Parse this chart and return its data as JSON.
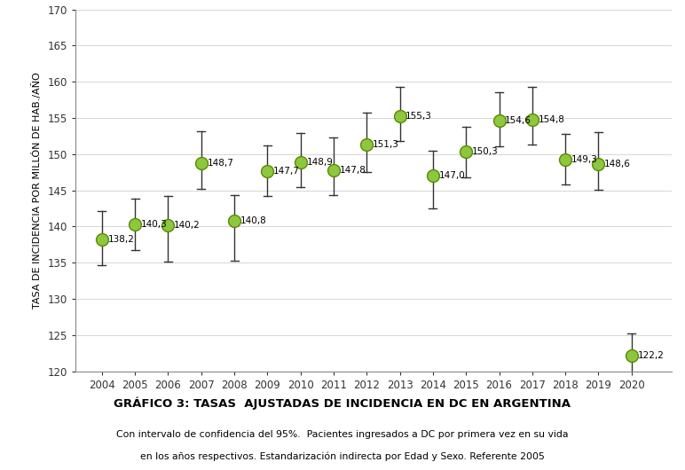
{
  "years": [
    2004,
    2005,
    2006,
    2007,
    2008,
    2009,
    2010,
    2011,
    2012,
    2013,
    2014,
    2015,
    2016,
    2017,
    2018,
    2019,
    2020
  ],
  "values": [
    138.2,
    140.3,
    140.2,
    148.7,
    140.8,
    147.7,
    148.9,
    147.8,
    151.3,
    155.3,
    147.0,
    150.3,
    154.6,
    154.8,
    149.3,
    148.6,
    122.2
  ],
  "err_low": [
    3.5,
    3.5,
    5.0,
    3.5,
    5.5,
    3.5,
    3.5,
    3.5,
    3.8,
    3.5,
    4.5,
    3.5,
    3.5,
    3.5,
    3.5,
    3.5,
    4.5
  ],
  "err_high": [
    4.0,
    3.5,
    4.0,
    4.5,
    3.5,
    3.5,
    4.0,
    4.5,
    4.5,
    4.0,
    3.5,
    3.5,
    4.0,
    4.5,
    3.5,
    4.5,
    3.0
  ],
  "marker_color": "#8dc63f",
  "marker_edge_color": "#5a8a00",
  "error_color": "#333333",
  "ylim": [
    120,
    170
  ],
  "yticks": [
    120,
    125,
    130,
    135,
    140,
    145,
    150,
    155,
    160,
    165,
    170
  ],
  "ylabel": "TASA DE INCIDENCIA POR MILLÓN DE HAB./AÑO",
  "title": "GRÁFICO 3: TASAS  AJUSTADAS DE INCIDENCIA EN DC EN ARGENTINA",
  "subtitle1": "Con intervalo de confidencia del 95%.  Pacientes ingresados a DC por primera vez en su vida",
  "subtitle2": "en los años respectivos. Estandarización indirecta por Edad y Sexo. Referente 2005",
  "background_color": "#ffffff",
  "grid_color": "#d0d0d0"
}
